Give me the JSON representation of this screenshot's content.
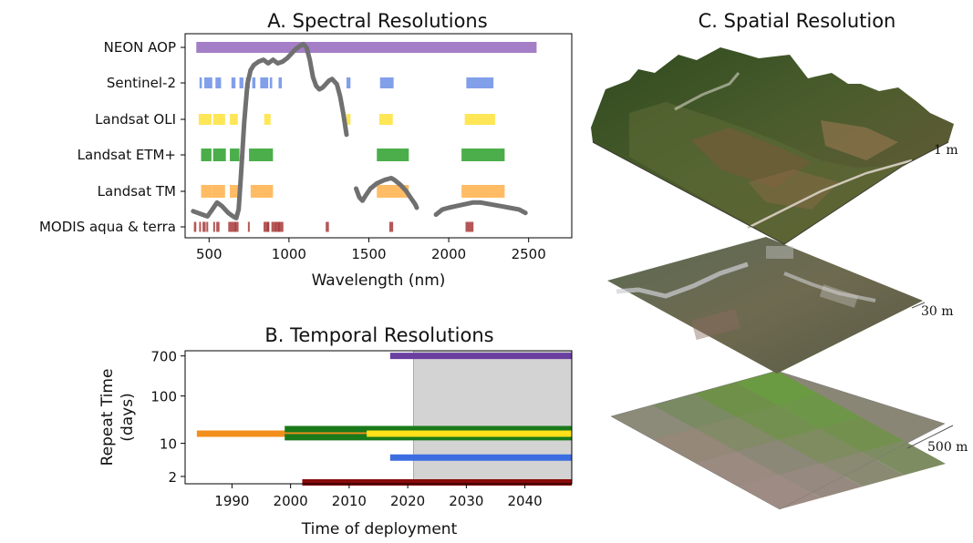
{
  "chart_data": [
    {
      "type": "bar",
      "title": "A. Spectral Resolutions",
      "xlabel": "Wavelength (nm)",
      "xlim": [
        350,
        2770
      ],
      "xticks": [
        500,
        1000,
        1500,
        2000,
        2500
      ],
      "rows": [
        {
          "name": "NEON AOP",
          "color": "#9467bd",
          "bands": [
            [
              420,
              2550
            ]
          ]
        },
        {
          "name": "Sentinel-2",
          "color": "#6c8ee6",
          "bands": [
            [
              440,
              455
            ],
            [
              470,
              520
            ],
            [
              540,
              575
            ],
            [
              640,
              665
            ],
            [
              690,
              715
            ],
            [
              730,
              755
            ],
            [
              770,
              790
            ],
            [
              820,
              870
            ],
            [
              880,
              895
            ],
            [
              935,
              955
            ],
            [
              1360,
              1385
            ],
            [
              1570,
              1655
            ],
            [
              2110,
              2280
            ]
          ]
        },
        {
          "name": "Landsat OLI",
          "color": "#ffe239",
          "bands": [
            [
              435,
              450
            ],
            [
              450,
              515
            ],
            [
              525,
              600
            ],
            [
              630,
              680
            ],
            [
              845,
              885
            ],
            [
              1360,
              1385
            ],
            [
              1565,
              1650
            ],
            [
              2100,
              2290
            ]
          ]
        },
        {
          "name": "Landsat ETM+",
          "color": "#2ca02c",
          "bands": [
            [
              450,
              515
            ],
            [
              525,
              605
            ],
            [
              630,
              690
            ],
            [
              750,
              900
            ],
            [
              1550,
              1750
            ],
            [
              2080,
              2350
            ]
          ]
        },
        {
          "name": "Landsat TM",
          "color": "#ffb04a",
          "bands": [
            [
              450,
              520
            ],
            [
              520,
              600
            ],
            [
              630,
              690
            ],
            [
              760,
              900
            ],
            [
              1550,
              1750
            ],
            [
              2080,
              2350
            ]
          ]
        },
        {
          "name": "MODIS aqua & terra",
          "color": "#a83a3a",
          "bands": [
            [
              405,
              420
            ],
            [
              438,
              448
            ],
            [
              459,
              479
            ],
            [
              483,
              493
            ],
            [
              526,
              536
            ],
            [
              545,
              565
            ],
            [
              620,
              670
            ],
            [
              662,
              672
            ],
            [
              673,
              683
            ],
            [
              743,
              753
            ],
            [
              841,
              876
            ],
            [
              862,
              877
            ],
            [
              890,
              920
            ],
            [
              915,
              965
            ],
            [
              931,
              941
            ],
            [
              1230,
              1250
            ],
            [
              1628,
              1652
            ],
            [
              2105,
              2155
            ]
          ]
        }
      ],
      "spectrum": {
        "name": "reflectance spectrum",
        "color": "#707070",
        "segments": [
          [
            [
              400,
              9
            ],
            [
              430,
              8
            ],
            [
              460,
              7
            ],
            [
              490,
              6
            ],
            [
              520,
              10
            ],
            [
              550,
              14
            ],
            [
              580,
              12
            ],
            [
              620,
              8
            ],
            [
              650,
              6
            ],
            [
              670,
              5
            ],
            [
              685,
              10
            ],
            [
              700,
              30
            ],
            [
              720,
              60
            ],
            [
              740,
              82
            ],
            [
              760,
              90
            ],
            [
              780,
              93
            ],
            [
              810,
              95
            ],
            [
              840,
              96
            ],
            [
              870,
              94
            ],
            [
              900,
              96
            ],
            [
              930,
              94
            ],
            [
              960,
              95
            ],
            [
              990,
              97
            ],
            [
              1010,
              99
            ],
            [
              1040,
              102
            ],
            [
              1070,
              104
            ],
            [
              1090,
              105
            ],
            [
              1110,
              103
            ],
            [
              1130,
              96
            ],
            [
              1150,
              86
            ],
            [
              1170,
              81
            ],
            [
              1190,
              79
            ],
            [
              1210,
              80
            ],
            [
              1230,
              82
            ],
            [
              1250,
              84
            ],
            [
              1270,
              85
            ],
            [
              1300,
              82
            ],
            [
              1320,
              75
            ],
            [
              1340,
              65
            ],
            [
              1360,
              53
            ]
          ],
          [
            [
              1420,
              22
            ],
            [
              1440,
              17
            ],
            [
              1460,
              15
            ],
            [
              1480,
              18
            ],
            [
              1510,
              22
            ],
            [
              1550,
              25
            ],
            [
              1600,
              27
            ],
            [
              1640,
              28
            ],
            [
              1660,
              27
            ],
            [
              1700,
              24
            ],
            [
              1730,
              21
            ],
            [
              1760,
              17
            ],
            [
              1790,
              13
            ],
            [
              1800,
              11
            ]
          ],
          [
            [
              1920,
              7
            ],
            [
              1960,
              10
            ],
            [
              2000,
              11
            ],
            [
              2050,
              12
            ],
            [
              2100,
              13
            ],
            [
              2150,
              14
            ],
            [
              2200,
              14
            ],
            [
              2260,
              13
            ],
            [
              2320,
              12
            ],
            [
              2380,
              11
            ],
            [
              2440,
              10
            ],
            [
              2480,
              8
            ]
          ]
        ]
      }
    },
    {
      "type": "line",
      "title": "B. Temporal Resolutions",
      "xlabel": "Time of deployment",
      "ylabel": "Repeat Time (days)",
      "yscale": "log",
      "xlim": [
        1982,
        2048
      ],
      "ylim": [
        1.4,
        900
      ],
      "xticks": [
        1990,
        2000,
        2010,
        2020,
        2030,
        2040
      ],
      "yticks": [
        2,
        10,
        100,
        700
      ],
      "shaded_region": [
        2021,
        2048
      ],
      "series": [
        {
          "color": "#6a3fa0",
          "segments": [
            [
              2017,
              2048,
              700
            ]
          ]
        },
        {
          "color": "#f28e1c",
          "segments": [
            [
              1984,
              2013,
              16
            ]
          ]
        },
        {
          "color": "#1a7a1a",
          "segments": [
            [
              1999,
              2048,
              20
            ],
            [
              1999,
              2048,
              13.5
            ]
          ]
        },
        {
          "color": "#ffe01a",
          "segments": [
            [
              2013,
              2048,
              16
            ]
          ]
        },
        {
          "color": "#3c6de0",
          "segments": [
            [
              2017,
              2048,
              5
            ]
          ]
        },
        {
          "color": "#8a0a0a",
          "segments": [
            [
              2002,
              2048,
              1.5
            ]
          ]
        }
      ]
    }
  ],
  "panel_c": {
    "title": "C. Spatial Resolution",
    "layers": [
      {
        "scale_label": "1 m"
      },
      {
        "scale_label": "30 m"
      },
      {
        "scale_label": "500 m"
      }
    ]
  }
}
